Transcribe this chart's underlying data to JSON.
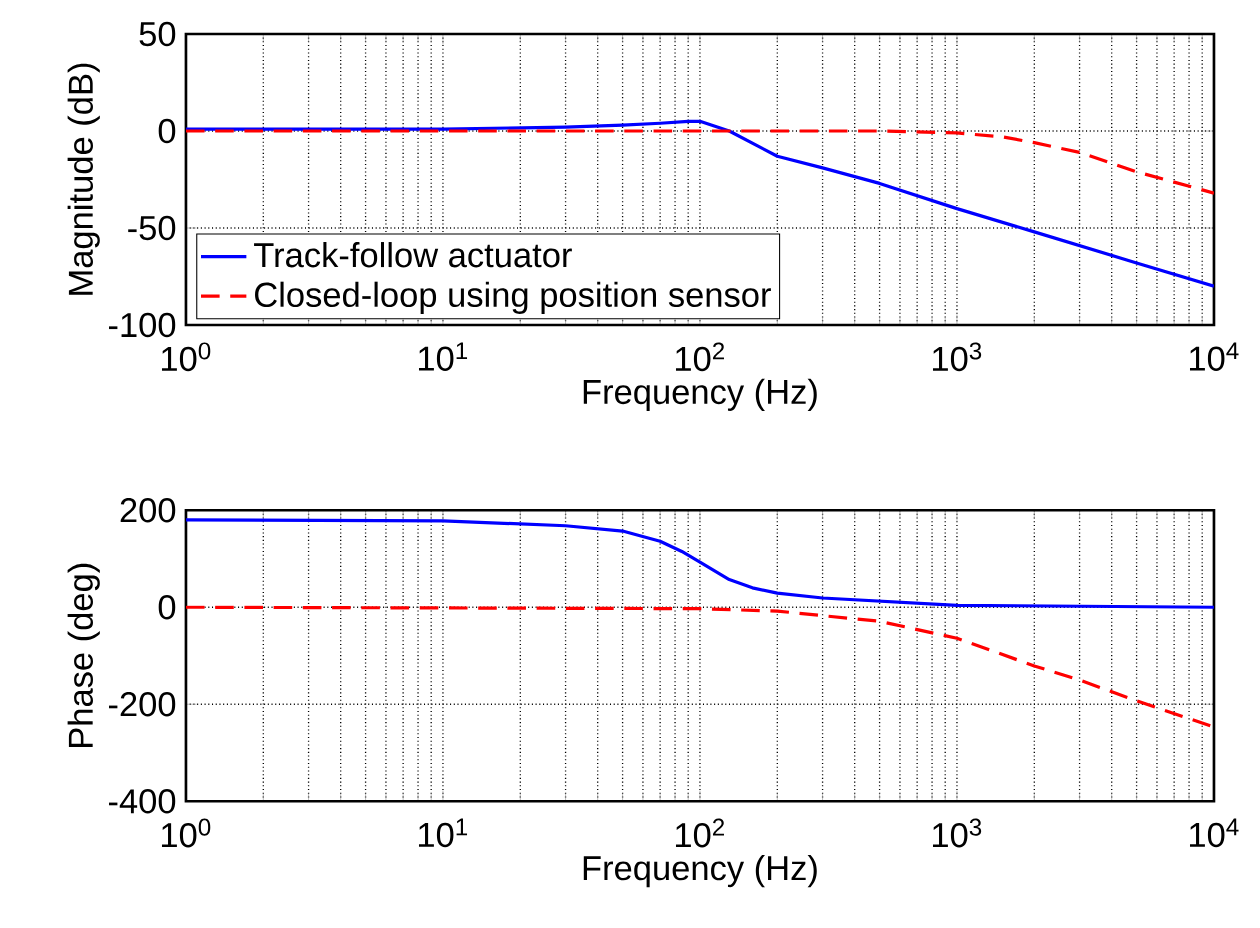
{
  "chart_data": [
    {
      "type": "line",
      "xlabel": "Frequency (Hz)",
      "ylabel": "Magnitude (dB)",
      "log": "x",
      "grid": true,
      "legend": "bottom left",
      "xlim": [
        1,
        10000
      ],
      "ylim": [
        -100,
        50
      ],
      "xticks": [
        {
          "value": 1,
          "label": "10$^{0}$"
        },
        {
          "value": 10,
          "label": "10$^{1}$"
        },
        {
          "value": 100,
          "label": "10$^{2}$"
        },
        {
          "value": 1000,
          "label": "10$^{3}$"
        },
        {
          "value": 10000,
          "label": "10$^{4}$"
        }
      ],
      "yticks": [
        -100,
        -50,
        0,
        50
      ],
      "series": [
        {
          "name": "Track-follow actuator",
          "color": "#0000ff",
          "line_style": "solid",
          "x": [
            1,
            10,
            30,
            50,
            70,
            90,
            100,
            130,
            200,
            300,
            500,
            1000,
            2000,
            5000,
            10000
          ],
          "values": [
            1,
            1,
            2,
            3,
            4,
            5,
            5,
            0,
            -13,
            -19,
            -27,
            -40,
            -52,
            -68,
            -80
          ]
        },
        {
          "name": "Closed-loop using position sensor",
          "color": "#ff0000",
          "line_style": "dashed",
          "x": [
            1,
            10,
            100,
            500,
            1000,
            1500,
            2000,
            3000,
            5000,
            10000
          ],
          "values": [
            0,
            0,
            0,
            0,
            -1,
            -3,
            -6,
            -11,
            -21,
            -32
          ]
        }
      ]
    },
    {
      "type": "line",
      "xlabel": "Frequency (Hz)",
      "ylabel": "Phase (deg)",
      "log": "x",
      "grid": true,
      "xlim": [
        1,
        10000
      ],
      "ylim": [
        -400,
        200
      ],
      "xticks": [
        {
          "value": 1,
          "label": "10$^{0}$"
        },
        {
          "value": 10,
          "label": "10$^{1}$"
        },
        {
          "value": 100,
          "label": "10$^{2}$"
        },
        {
          "value": 1000,
          "label": "10$^{3}$"
        },
        {
          "value": 10000,
          "label": "10$^{4}$"
        }
      ],
      "yticks": [
        -400,
        -200,
        0,
        200
      ],
      "series": [
        {
          "color": "#0000ff",
          "line_style": "solid",
          "x": [
            1,
            10,
            30,
            50,
            70,
            85,
            100,
            130,
            160,
            200,
            300,
            1000,
            10000
          ],
          "values": [
            180,
            178,
            168,
            157,
            136,
            115,
            93,
            57,
            40,
            29,
            19,
            4,
            0
          ]
        },
        {
          "color": "#ff0000",
          "line_style": "dashed",
          "x": [
            1,
            100,
            200,
            500,
            1000,
            2000,
            3000,
            5000,
            10000
          ],
          "values": [
            0,
            -3,
            -8,
            -29,
            -64,
            -121,
            -150,
            -193,
            -247
          ]
        }
      ]
    }
  ]
}
